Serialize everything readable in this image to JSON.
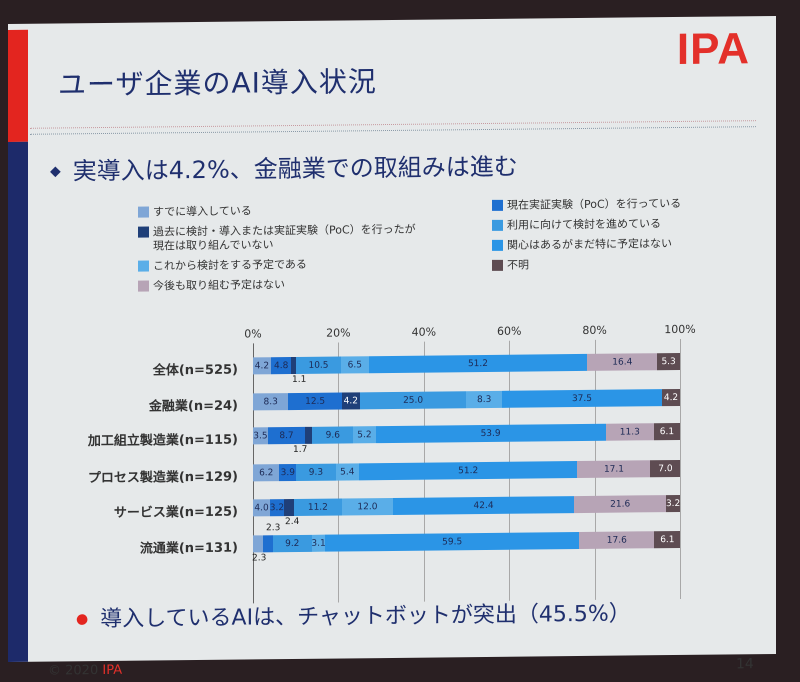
{
  "slide": {
    "title": "ユーザ企業のAI導入状況",
    "logo": "IPA",
    "bullet1": "実導入は4.2%、金融業での取組みは進む",
    "bullet2": "導入しているAIは、チャットボットが突出（45.5%）",
    "footer_copyright": "© 2020",
    "footer_org": "IPA",
    "page_number": "14"
  },
  "legend": {
    "left": [
      {
        "label": "すでに導入している",
        "color": "#7fa6d6"
      },
      {
        "label": "過去に検討・導入または実証実験（PoC）を行ったが\n現在は取り組んでいない",
        "color": "#1f3f78"
      },
      {
        "label": "これから検討をする予定である",
        "color": "#5aaee8"
      },
      {
        "label": "今後も取り組む予定はない",
        "color": "#b7a4b6"
      }
    ],
    "right": [
      {
        "label": "現在実証実験（PoC）を行っている",
        "color": "#1e6fd0"
      },
      {
        "label": "利用に向けて検討を進めている",
        "color": "#3a9ae0"
      },
      {
        "label": "関心はあるがまだ特に予定はない",
        "color": "#2b95e6"
      },
      {
        "label": "不明",
        "color": "#5e4c52"
      }
    ]
  },
  "chart_data": {
    "type": "bar",
    "orientation": "horizontal-stacked-100",
    "title": "ユーザ企業のAI導入状況",
    "xlabel": "",
    "ylabel": "",
    "xlim": [
      0,
      100
    ],
    "x_ticks": [
      "0%",
      "20%",
      "40%",
      "60%",
      "80%",
      "100%"
    ],
    "grid": true,
    "legend_position": "top",
    "categories": [
      "全体(n=525)",
      "金融業(n=24)",
      "加工組立製造業(n=115)",
      "プロセス製造業(n=129)",
      "サービス業(n=125)",
      "流通業(n=131)"
    ],
    "series": [
      {
        "name": "すでに導入している",
        "color": "#7fa6d6",
        "values": [
          4.2,
          8.3,
          3.5,
          6.2,
          4.0,
          2.3
        ]
      },
      {
        "name": "現在実証実験（PoC）を行っている",
        "color": "#1e6fd0",
        "values": [
          4.8,
          12.5,
          8.7,
          3.9,
          3.2,
          2.3
        ]
      },
      {
        "name": "過去に検討・導入または実証実験（PoC）を行ったが現在は取り組んでいない",
        "color": "#1f3f78",
        "values": [
          1.1,
          4.2,
          1.7,
          0,
          2.4,
          0
        ]
      },
      {
        "name": "利用に向けて検討を進めている",
        "color": "#3a9ae0",
        "values": [
          10.5,
          25.0,
          9.6,
          9.3,
          11.2,
          9.2
        ]
      },
      {
        "name": "これから検討をする予定である",
        "color": "#5aaee8",
        "values": [
          6.5,
          8.3,
          5.2,
          5.4,
          12.0,
          3.1
        ]
      },
      {
        "name": "関心はあるがまだ特に予定はない",
        "color": "#2b95e6",
        "values": [
          51.2,
          37.5,
          53.9,
          51.2,
          42.4,
          59.5
        ]
      },
      {
        "name": "今後も取り組む予定はない",
        "color": "#b7a4b6",
        "values": [
          16.4,
          0,
          11.3,
          17.1,
          21.6,
          17.6
        ]
      },
      {
        "name": "不明",
        "color": "#5e4c52",
        "values": [
          5.3,
          4.2,
          6.1,
          7.0,
          3.2,
          6.1
        ]
      }
    ],
    "external_labels": [
      {
        "row": 0,
        "text": "1.1"
      },
      {
        "row": 2,
        "text": "1.7"
      },
      {
        "row": 4,
        "text": "2.4"
      },
      {
        "row": 5,
        "text": "2.3",
        "position": "above"
      },
      {
        "row": 5,
        "text": "2.3",
        "position": "below"
      }
    ]
  }
}
